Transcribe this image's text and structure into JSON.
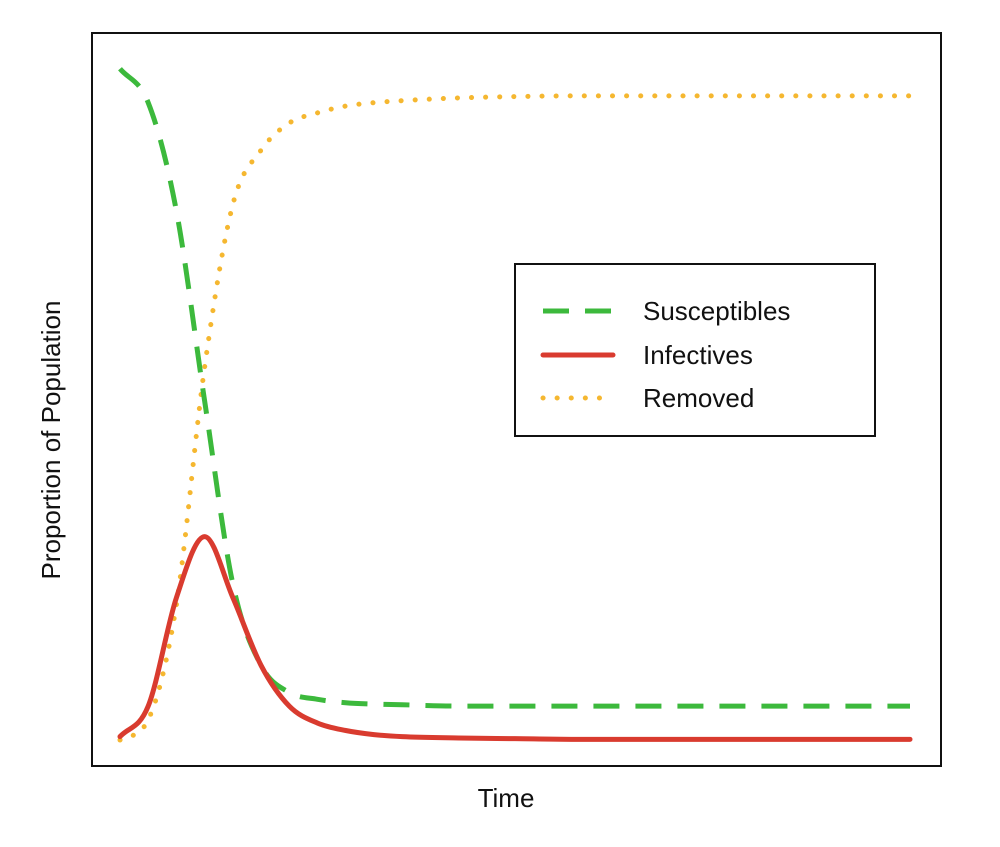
{
  "chart_data": {
    "type": "line",
    "title": "",
    "xlabel": "Time",
    "ylabel": "Proportion of Population",
    "x_ticks": "none",
    "y_ticks": "none",
    "ylim": [
      0,
      1
    ],
    "grid": false,
    "legend_position": "right",
    "x": [
      0,
      1,
      2,
      3,
      4,
      5,
      6,
      7,
      8,
      9,
      10,
      12,
      14,
      16,
      18,
      20,
      22,
      24,
      26,
      28
    ],
    "series": [
      {
        "name": "Susceptibles",
        "style": "dashed",
        "color": "#3cb93c",
        "values": [
          0.99,
          0.94,
          0.78,
          0.5,
          0.23,
          0.11,
          0.07,
          0.06,
          0.055,
          0.053,
          0.052,
          0.05,
          0.05,
          0.05,
          0.05,
          0.05,
          0.05,
          0.05,
          0.05,
          0.05
        ]
      },
      {
        "name": "Infectives",
        "style": "solid",
        "color": "#d93b2f",
        "values": [
          0.005,
          0.05,
          0.21,
          0.3,
          0.21,
          0.11,
          0.05,
          0.025,
          0.014,
          0.008,
          0.005,
          0.003,
          0.002,
          0.001,
          0.001,
          0.001,
          0.001,
          0.001,
          0.001,
          0.001
        ]
      },
      {
        "name": "Removed",
        "style": "dotted",
        "color": "#f5b730",
        "values": [
          0.0,
          0.03,
          0.2,
          0.55,
          0.79,
          0.87,
          0.91,
          0.925,
          0.935,
          0.94,
          0.943,
          0.947,
          0.949,
          0.95,
          0.95,
          0.95,
          0.95,
          0.95,
          0.95,
          0.95
        ]
      }
    ]
  }
}
